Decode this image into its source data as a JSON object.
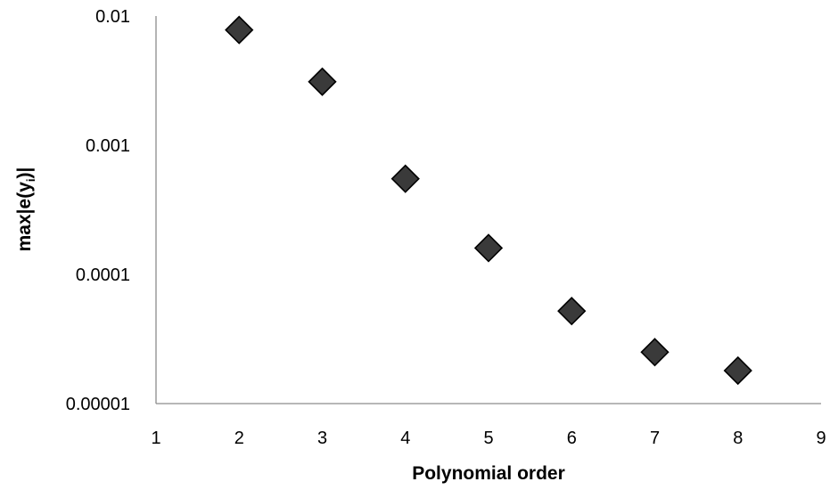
{
  "chart_data": {
    "type": "scatter",
    "title": "",
    "xlabel": "Polynomial order",
    "ylabel_main": "max|e(y",
    "ylabel_sub": "i",
    "ylabel_tail": ")|",
    "xlim": [
      1,
      9
    ],
    "ylim": [
      1e-05,
      0.01
    ],
    "yscale": "log",
    "grid": false,
    "legend": "none",
    "x_ticks": [
      "1",
      "2",
      "3",
      "4",
      "5",
      "6",
      "7",
      "8",
      "9"
    ],
    "y_ticks": [
      "0.01",
      "0.001",
      "0.0001",
      "0.00001"
    ],
    "y_tick_values": [
      0.01,
      0.001,
      0.0001,
      1e-05
    ],
    "marker": "diamond",
    "marker_color": "#3a3a3a",
    "marker_edge_color": "#000000",
    "x": [
      2,
      3,
      4,
      5,
      6,
      7,
      8
    ],
    "y": [
      0.0078,
      0.0031,
      0.00055,
      0.00016,
      5.2e-05,
      2.5e-05,
      1.8e-05
    ]
  }
}
